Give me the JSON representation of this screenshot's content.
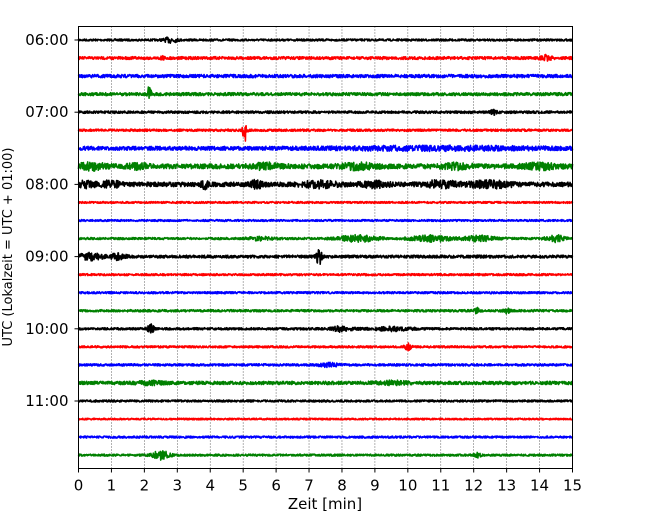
{
  "chart_data": {
    "type": "line",
    "subtype": "seismogram-helicorder",
    "title": "",
    "xlabel": "Zeit  [min]",
    "ylabel": "UTC (Lokalzeit = UTC + 01:00)",
    "xlim": [
      0,
      15
    ],
    "x_ticks": [
      0,
      1,
      2,
      3,
      4,
      5,
      6,
      7,
      8,
      9,
      10,
      11,
      12,
      13,
      14,
      15
    ],
    "y_tick_labels": [
      "06:00",
      "07:00",
      "08:00",
      "09:00",
      "10:00",
      "11:00"
    ],
    "trace_start_times": [
      "06:00",
      "06:15",
      "06:30",
      "06:45",
      "07:00",
      "07:15",
      "07:30",
      "07:45",
      "08:00",
      "08:15",
      "08:30",
      "08:45",
      "09:00",
      "09:15",
      "09:30",
      "09:45",
      "10:00",
      "10:15",
      "10:30",
      "10:45",
      "11:00",
      "11:15",
      "11:30",
      "11:45"
    ],
    "color_cycle": [
      "#000000",
      "#ff0000",
      "#0000ff",
      "#008000"
    ],
    "vertical_grid": "dotted",
    "traces": [
      {
        "base": 1.0,
        "events": [
          [
            2.8,
            0.2,
            2.5
          ]
        ]
      },
      {
        "base": 1.4,
        "events": [
          [
            14.2,
            0.15,
            2.5
          ],
          [
            2.55,
            0.05,
            2.0
          ]
        ]
      },
      {
        "base": 1.6,
        "events": []
      },
      {
        "base": 1.5,
        "events": [
          [
            2.15,
            0.06,
            8.0
          ]
        ]
      },
      {
        "base": 1.2,
        "events": [
          [
            12.6,
            0.1,
            2.0
          ]
        ]
      },
      {
        "base": 1.1,
        "events": [
          [
            5.05,
            0.06,
            12.0
          ]
        ]
      },
      {
        "base": 1.9,
        "events": [
          [
            11.0,
            3.0,
            1.3
          ]
        ]
      },
      {
        "base": 2.4,
        "events": [
          [
            0.4,
            0.4,
            2.5
          ],
          [
            1.8,
            0.3,
            1.8
          ],
          [
            5.7,
            0.4,
            2.2
          ],
          [
            8.5,
            0.5,
            2.2
          ],
          [
            11.5,
            0.4,
            2.0
          ],
          [
            14.0,
            0.5,
            2.0
          ]
        ]
      },
      {
        "base": 2.2,
        "events": [
          [
            0.2,
            0.3,
            2.5
          ],
          [
            1.0,
            0.25,
            3.0
          ],
          [
            3.85,
            0.12,
            4.0
          ],
          [
            5.4,
            0.2,
            3.0
          ],
          [
            7.3,
            0.5,
            2.5
          ],
          [
            9.0,
            0.4,
            2.5
          ],
          [
            11.0,
            0.5,
            2.8
          ],
          [
            12.5,
            0.6,
            2.8
          ]
        ]
      },
      {
        "base": 0.9,
        "events": []
      },
      {
        "base": 0.9,
        "events": []
      },
      {
        "base": 1.0,
        "events": [
          [
            8.5,
            0.6,
            3.0
          ],
          [
            10.7,
            0.6,
            2.8
          ],
          [
            12.2,
            0.5,
            2.5
          ],
          [
            14.5,
            0.3,
            3.0
          ],
          [
            5.5,
            0.4,
            1.5
          ]
        ]
      },
      {
        "base": 1.4,
        "events": [
          [
            0.35,
            0.35,
            3.0
          ],
          [
            1.2,
            0.25,
            2.5
          ],
          [
            7.3,
            0.08,
            8.0
          ]
        ]
      },
      {
        "base": 1.0,
        "events": []
      },
      {
        "base": 1.0,
        "events": []
      },
      {
        "base": 1.1,
        "events": [
          [
            12.1,
            0.1,
            2.5
          ],
          [
            13.0,
            0.1,
            2.0
          ]
        ]
      },
      {
        "base": 1.1,
        "events": [
          [
            2.2,
            0.1,
            4.0
          ],
          [
            8.0,
            0.3,
            2.5
          ],
          [
            9.5,
            0.6,
            1.8
          ]
        ]
      },
      {
        "base": 1.0,
        "events": [
          [
            10.0,
            0.1,
            3.0
          ]
        ]
      },
      {
        "base": 1.1,
        "events": [
          [
            7.6,
            0.3,
            1.6
          ]
        ]
      },
      {
        "base": 1.6,
        "events": [
          [
            2.2,
            0.4,
            1.3
          ],
          [
            9.5,
            0.5,
            1.3
          ]
        ]
      },
      {
        "base": 1.0,
        "events": []
      },
      {
        "base": 0.8,
        "events": []
      },
      {
        "base": 1.0,
        "events": []
      },
      {
        "base": 1.0,
        "events": [
          [
            2.5,
            0.25,
            4.0
          ],
          [
            12.1,
            0.1,
            2.0
          ]
        ]
      }
    ]
  }
}
